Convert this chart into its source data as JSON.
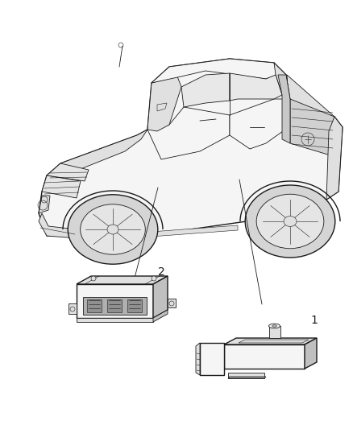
{
  "background_color": "#ffffff",
  "line_color": "#1a1a1a",
  "fill_light": "#f5f5f5",
  "fill_mid": "#e0e0e0",
  "fill_dark": "#c0c0c0",
  "fill_darker": "#a0a0a0",
  "label_1": "1",
  "label_2": "2",
  "figsize": [
    4.38,
    5.33
  ],
  "dpi": 100,
  "lw_main": 1.0,
  "lw_detail": 0.6,
  "lw_thin": 0.4
}
